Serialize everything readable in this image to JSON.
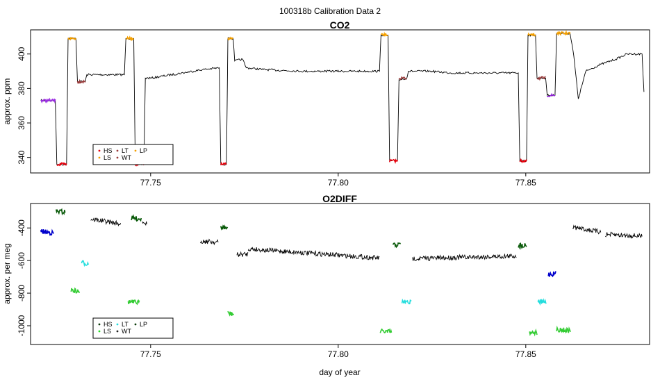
{
  "title": "100318b   Calibration Data 2",
  "xlabel": "day of year",
  "chart_data": [
    {
      "type": "line",
      "title": "CO2",
      "ylabel": "approx. ppm",
      "xlim": [
        77.718,
        77.883
      ],
      "ylim": [
        331,
        414
      ],
      "x_ticks": [
        "77.75",
        "77.80",
        "77.85"
      ],
      "x_tick_values": [
        77.75,
        77.8,
        77.85
      ],
      "y_ticks": [
        "340",
        "360",
        "380",
        "400"
      ],
      "y_tick_values": [
        340,
        360,
        380,
        400
      ],
      "legend": {
        "position": "bottom-left",
        "entries": [
          {
            "label": "HS",
            "color": "#e8000b"
          },
          {
            "label": "LS",
            "color": "#f5a000"
          },
          {
            "label": "LT",
            "color": "#9a3a3a"
          },
          {
            "label": "WT",
            "color": "#9a3a3a"
          },
          {
            "label": "LP",
            "color": "#f5a000"
          }
        ]
      },
      "trace": [
        [
          77.7207,
          373
        ],
        [
          77.7246,
          373
        ],
        [
          77.725,
          336
        ],
        [
          77.7276,
          336
        ],
        [
          77.728,
          409
        ],
        [
          77.7301,
          409
        ],
        [
          77.7305,
          384
        ],
        [
          77.7326,
          384
        ],
        [
          77.733,
          388
        ],
        [
          77.743,
          388
        ],
        [
          77.7434,
          409
        ],
        [
          77.7455,
          409
        ],
        [
          77.7459,
          336
        ],
        [
          77.7482,
          336
        ],
        [
          77.7486,
          386
        ],
        [
          77.75,
          386
        ],
        [
          77.764,
          391
        ],
        [
          77.7683,
          392
        ],
        [
          77.7687,
          336
        ],
        [
          77.7702,
          336
        ],
        [
          77.7706,
          409
        ],
        [
          77.772,
          409
        ],
        [
          77.7724,
          396
        ],
        [
          77.7745,
          397
        ],
        [
          77.7755,
          392
        ],
        [
          77.78,
          391
        ],
        [
          77.79,
          390
        ],
        [
          77.811,
          390
        ],
        [
          77.8114,
          411
        ],
        [
          77.8133,
          411
        ],
        [
          77.8137,
          338
        ],
        [
          77.8158,
          338
        ],
        [
          77.8162,
          385
        ],
        [
          77.8183,
          386
        ],
        [
          77.8187,
          390
        ],
        [
          77.825,
          390
        ],
        [
          77.83,
          389
        ],
        [
          77.848,
          389
        ],
        [
          77.8484,
          338
        ],
        [
          77.8502,
          338
        ],
        [
          77.8506,
          411
        ],
        [
          77.8526,
          411
        ],
        [
          77.853,
          386
        ],
        [
          77.8553,
          386
        ],
        [
          77.8557,
          376
        ],
        [
          77.8578,
          376
        ],
        [
          77.8582,
          412
        ],
        [
          77.8618,
          412
        ],
        [
          77.8628,
          399
        ],
        [
          77.864,
          374
        ],
        [
          77.866,
          390
        ],
        [
          77.87,
          394
        ],
        [
          77.874,
          397
        ],
        [
          77.877,
          400
        ],
        [
          77.881,
          400
        ],
        [
          77.8815,
          378
        ]
      ],
      "segments": [
        {
          "name": "purple",
          "color": "#9a2be2",
          "x": [
            77.7207,
            77.7246
          ],
          "y": 373
        },
        {
          "name": "HS",
          "color": "#e8000b",
          "x": [
            77.725,
            77.7276
          ],
          "y": 336
        },
        {
          "name": "LS",
          "color": "#f5a000",
          "x": [
            77.728,
            77.7301
          ],
          "y": 409
        },
        {
          "name": "LT",
          "color": "#9a3a3a",
          "x": [
            77.7305,
            77.7326
          ],
          "y": 384
        },
        {
          "name": "LS",
          "color": "#f5a000",
          "x": [
            77.7434,
            77.7455
          ],
          "y": 409
        },
        {
          "name": "HS",
          "color": "#e8000b",
          "x": [
            77.7459,
            77.7482
          ],
          "y": 336
        },
        {
          "name": "HS",
          "color": "#e8000b",
          "x": [
            77.7687,
            77.7702
          ],
          "y": 336
        },
        {
          "name": "LS",
          "color": "#f5a000",
          "x": [
            77.7706,
            77.772
          ],
          "y": 409
        },
        {
          "name": "LS",
          "color": "#f5a000",
          "x": [
            77.8114,
            77.8133
          ],
          "y": 411
        },
        {
          "name": "HS",
          "color": "#e8000b",
          "x": [
            77.8137,
            77.8158
          ],
          "y": 338
        },
        {
          "name": "LT",
          "color": "#9a3a3a",
          "x": [
            77.8162,
            77.8183
          ],
          "y": 386
        },
        {
          "name": "HS",
          "color": "#e8000b",
          "x": [
            77.8484,
            77.8502
          ],
          "y": 338
        },
        {
          "name": "LS",
          "color": "#f5a000",
          "x": [
            77.8506,
            77.8526
          ],
          "y": 411
        },
        {
          "name": "LT",
          "color": "#9a3a3a",
          "x": [
            77.853,
            77.8553
          ],
          "y": 386
        },
        {
          "name": "purple",
          "color": "#9a2be2",
          "x": [
            77.8557,
            77.8578
          ],
          "y": 376
        },
        {
          "name": "LS",
          "color": "#f5a000",
          "x": [
            77.8582,
            77.8618
          ],
          "y": 412
        }
      ]
    },
    {
      "type": "scatter",
      "title": "O2DIFF",
      "ylabel": "approx. per meg",
      "xlim": [
        77.718,
        77.883
      ],
      "ylim": [
        -1115,
        -250
      ],
      "x_ticks": [
        "77.75",
        "77.80",
        "77.85"
      ],
      "x_tick_values": [
        77.75,
        77.8,
        77.85
      ],
      "y_ticks": [
        "-1000",
        "-800",
        "-600",
        "-400"
      ],
      "y_tick_values": [
        -1000,
        -800,
        -600,
        -400
      ],
      "legend": {
        "position": "bottom-left",
        "entries": [
          {
            "label": "HS",
            "color": "#0a3a0a"
          },
          {
            "label": "LS",
            "color": "#22dd22"
          },
          {
            "label": "LT",
            "color": "#22dddd"
          },
          {
            "label": "WT",
            "color": "#222222"
          },
          {
            "label": "LP",
            "color": "#0a3a0a"
          }
        ]
      },
      "segments": [
        {
          "color": "#0000cc",
          "x": [
            77.7207,
            77.7242
          ],
          "y": [
            -420,
            -432
          ]
        },
        {
          "color": "#0a5a0a",
          "x": [
            77.7248,
            77.7272
          ],
          "y": [
            -298,
            -303
          ]
        },
        {
          "color": "#33cc33",
          "x": [
            77.7288,
            77.731
          ],
          "y": [
            -780,
            -792
          ]
        },
        {
          "color": "#22dddd",
          "x": [
            77.7316,
            77.7334
          ],
          "y": [
            -612,
            -620
          ]
        },
        {
          "color": "#000000",
          "x": [
            77.734,
            77.742
          ],
          "y": [
            -345,
            -375
          ]
        },
        {
          "color": "#0a5a0a",
          "x": [
            77.7448,
            77.7475
          ],
          "y": [
            -340,
            -345
          ]
        },
        {
          "color": "#000000",
          "x": [
            77.7478,
            77.749
          ],
          "y": [
            -355,
            -375
          ]
        },
        {
          "color": "#33cc33",
          "x": [
            77.744,
            77.747
          ],
          "y": [
            -853,
            -858
          ]
        },
        {
          "color": "#000000",
          "x": [
            77.7632,
            77.768
          ],
          "y": [
            -480,
            -488
          ]
        },
        {
          "color": "#0a5a0a",
          "x": [
            77.7686,
            77.7705
          ],
          "y": [
            -396,
            -400
          ]
        },
        {
          "color": "#33cc33",
          "x": [
            77.7706,
            77.7722
          ],
          "y": [
            -922,
            -930
          ]
        },
        {
          "color": "#000000",
          "x": [
            77.773,
            77.776
          ],
          "y": [
            -565,
            -560
          ]
        },
        {
          "color": "#000000",
          "x": [
            77.776,
            77.811
          ],
          "y": [
            -528,
            -585
          ]
        },
        {
          "color": "#33cc33",
          "x": [
            77.8112,
            77.8142
          ],
          "y": [
            -1035,
            -1038
          ]
        },
        {
          "color": "#0a5a0a",
          "x": [
            77.8146,
            77.8166
          ],
          "y": [
            -505,
            -502
          ]
        },
        {
          "color": "#22dddd",
          "x": [
            77.817,
            77.8195
          ],
          "y": [
            -852,
            -858
          ]
        },
        {
          "color": "#000000",
          "x": [
            77.8198,
            77.8475
          ],
          "y": [
            -588,
            -572
          ]
        },
        {
          "color": "#0a5a0a",
          "x": [
            77.848,
            77.8502
          ],
          "y": [
            -508,
            -505
          ]
        },
        {
          "color": "#33cc33",
          "x": [
            77.851,
            77.853
          ],
          "y": [
            -1040,
            -1042
          ]
        },
        {
          "color": "#22dddd",
          "x": [
            77.8532,
            77.8555
          ],
          "y": [
            -853,
            -856
          ]
        },
        {
          "color": "#0000cc",
          "x": [
            77.856,
            77.858
          ],
          "y": [
            -685,
            -680
          ]
        },
        {
          "color": "#33cc33",
          "x": [
            77.8582,
            77.862
          ],
          "y": [
            -1022,
            -1030
          ]
        },
        {
          "color": "#000000",
          "x": [
            77.8625,
            77.87
          ],
          "y": [
            -395,
            -425
          ]
        },
        {
          "color": "#000000",
          "x": [
            77.8712,
            77.881
          ],
          "y": [
            -440,
            -450
          ]
        }
      ]
    }
  ]
}
